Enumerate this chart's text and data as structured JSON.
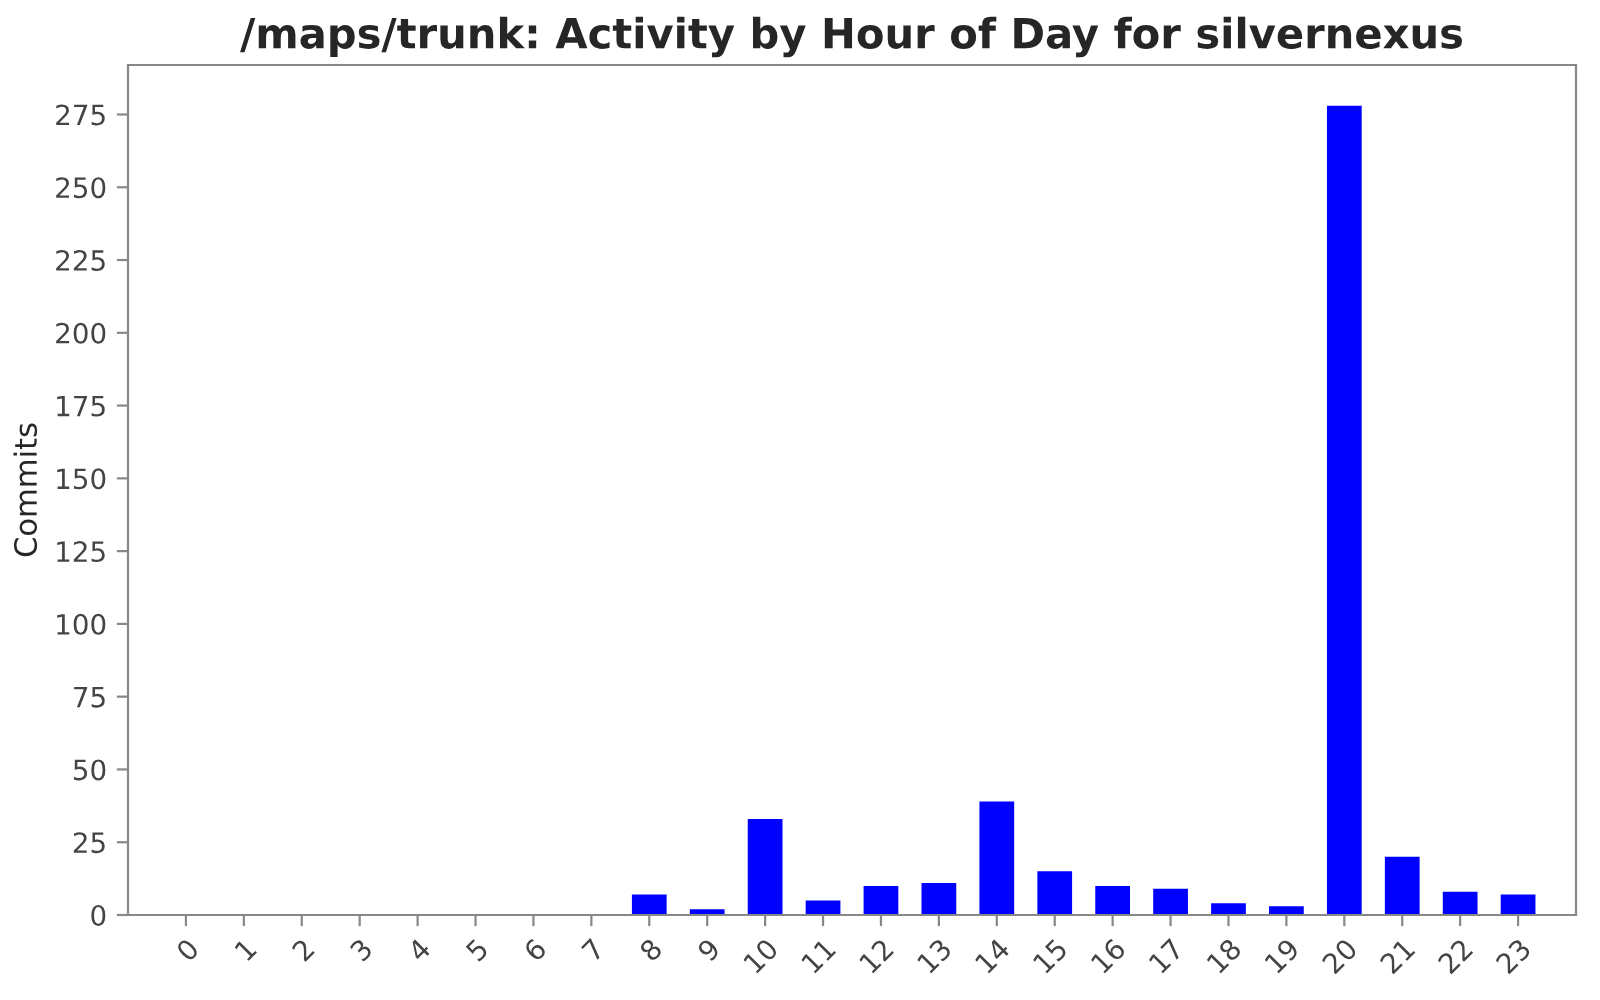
{
  "chart_data": {
    "type": "bar",
    "title": "/maps/trunk: Activity by Hour of Day for silvernexus",
    "ylabel": "Commits",
    "categories": [
      "0",
      "1",
      "2",
      "3",
      "4",
      "5",
      "6",
      "7",
      "8",
      "9",
      "10",
      "11",
      "12",
      "13",
      "14",
      "15",
      "16",
      "17",
      "18",
      "19",
      "20",
      "21",
      "22",
      "23"
    ],
    "values": [
      0,
      0,
      0,
      0,
      0,
      0,
      0,
      0,
      7,
      2,
      33,
      5,
      10,
      11,
      39,
      15,
      10,
      9,
      4,
      3,
      278,
      20,
      8,
      7
    ],
    "color": "#0000ff",
    "ylim": [
      0,
      292
    ],
    "yticks": [
      0,
      25,
      50,
      75,
      100,
      125,
      150,
      175,
      200,
      225,
      250,
      275
    ],
    "grid": false,
    "legend": false
  }
}
